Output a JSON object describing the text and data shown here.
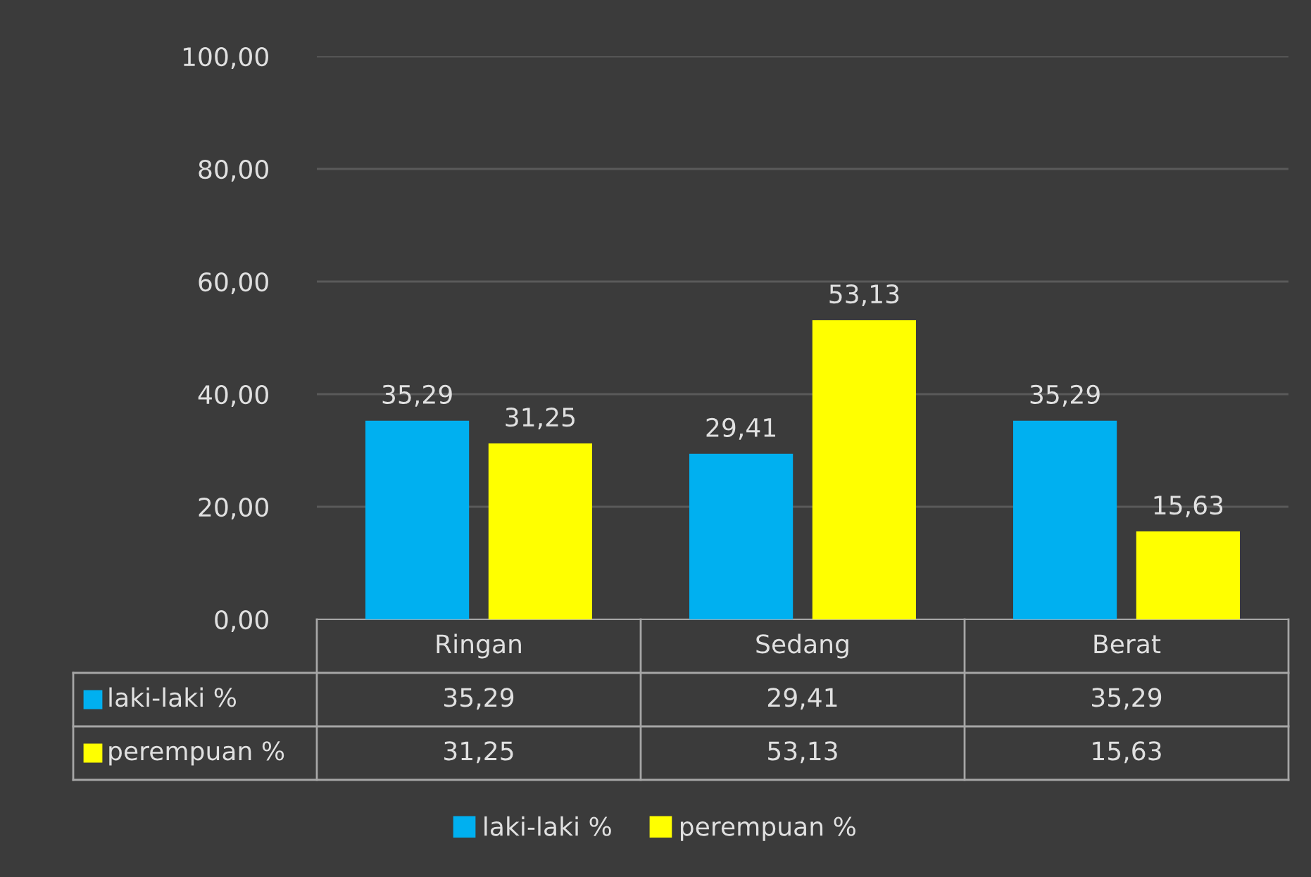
{
  "chart_data": {
    "type": "bar",
    "categories": [
      "Ringan",
      "Sedang",
      "Berat"
    ],
    "series": [
      {
        "name": "laki-laki %",
        "color": "#00b0f0",
        "values": [
          35.29,
          29.41,
          35.29
        ],
        "value_labels": [
          "35,29",
          "29,41",
          "35,29"
        ]
      },
      {
        "name": "perempuan %",
        "color": "#ffff00",
        "values": [
          31.25,
          53.13,
          15.63
        ],
        "value_labels": [
          "31,25",
          "53,13",
          "15,63"
        ]
      }
    ],
    "ylim": [
      0,
      100
    ],
    "yticks": [
      {
        "value": 0,
        "label": "0,00"
      },
      {
        "value": 20,
        "label": "20,00"
      },
      {
        "value": 40,
        "label": "40,00"
      },
      {
        "value": 60,
        "label": "60,00"
      },
      {
        "value": 80,
        "label": "80,00"
      },
      {
        "value": 100,
        "label": "100,00"
      }
    ],
    "grid": "y",
    "legend": "bottom"
  }
}
